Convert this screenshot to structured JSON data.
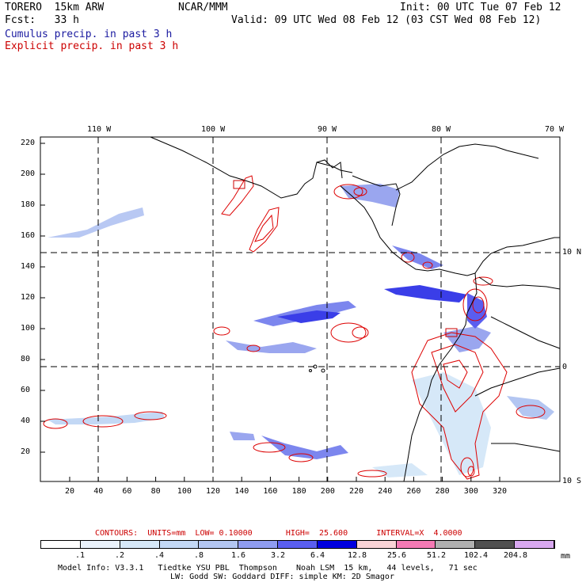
{
  "header": {
    "model": "TORERO  15km ARW",
    "org": "NCAR/MMM",
    "init": "Init: 00 UTC Tue 07 Feb 12",
    "fcst": "Fcst:   33 h",
    "valid": "Valid: 09 UTC Wed 08 Feb 12 (03 CST Wed 08 Feb 12)"
  },
  "legend": {
    "cumulus": "Cumulus precip. in past 3 h",
    "explicit": "Explicit precip. in past 3 h",
    "cumulus_color": "#1a1aa0",
    "explicit_color": "#cc0000"
  },
  "top_axis": {
    "lon_labels": [
      "110 W",
      "100 W",
      "90 W",
      "80 W",
      "70 W"
    ]
  },
  "right_axis": {
    "lat_labels": [
      "10 N",
      "0",
      "10 S"
    ]
  },
  "left_axis": {
    "ticks": [
      "220",
      "200",
      "180",
      "160",
      "140",
      "120",
      "100",
      "80",
      "60",
      "40",
      "20"
    ]
  },
  "bottom_axis": {
    "ticks": [
      "20",
      "40",
      "60",
      "80",
      "100",
      "120",
      "140",
      "160",
      "180",
      "200",
      "220",
      "240",
      "260",
      "280",
      "300",
      "320"
    ]
  },
  "contour_info": {
    "text": "CONTOURS:  UNITS=mm  LOW= 0.10000       HIGH=  25.600      INTERVAL=X  4.0000"
  },
  "colorbar": {
    "labels": [
      ".1",
      ".2",
      ".4",
      ".8",
      "1.6",
      "3.2",
      "6.4",
      "12.8",
      "25.6",
      "51.2",
      "102.4",
      "204.8"
    ],
    "unit": "mm",
    "colors": [
      "#ffffff",
      "#eaf2fb",
      "#d6e8f8",
      "#c3d8f5",
      "#b3c6f2",
      "#8f9cf0",
      "#5a5ef0",
      "#0000e0",
      "#f9d3d6",
      "#f47ab4",
      "#b0b0b0",
      "#505050",
      "#d8a8f0"
    ]
  },
  "footer": {
    "line1": "Model Info: V3.3.1   Tiedtke YSU PBL  Thompson    Noah LSM  15 km,   44 levels,   71 sec",
    "line2": "LW: Godd SW: Goddard DIFF: simple KM: 2D Smagor"
  }
}
